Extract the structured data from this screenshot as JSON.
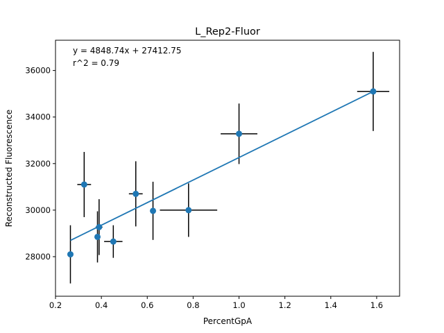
{
  "chart_data": {
    "type": "scatter",
    "title": "L_Rep2-Fluor",
    "xlabel": "PercentGpA",
    "ylabel": "Reconstructed Fluorescence",
    "xlim": [
      0.2,
      1.7
    ],
    "ylim": [
      26300,
      37300
    ],
    "x_ticks": [
      0.2,
      0.4,
      0.6,
      0.8,
      1.0,
      1.2,
      1.4,
      1.6
    ],
    "x_tick_labels": [
      "0.2",
      "0.4",
      "0.6",
      "0.8",
      "1.0",
      "1.2",
      "1.4",
      "1.6"
    ],
    "y_ticks": [
      28000,
      30000,
      32000,
      34000,
      36000
    ],
    "y_tick_labels": [
      "28000",
      "30000",
      "32000",
      "34000",
      "36000"
    ],
    "grid": false,
    "legend": false,
    "annotations": [
      "y = 4848.74x + 27412.75",
      "r^2 = 0.79"
    ],
    "fit": {
      "slope": 4848.74,
      "intercept": 27412.75,
      "r2": 0.79,
      "x_range": [
        0.265,
        1.585
      ],
      "color": "#1f77b4"
    },
    "marker_color": "#1f77b4",
    "errorbar_color": "#000000",
    "points": [
      {
        "x": 0.265,
        "y": 28100,
        "xerr": 0.01,
        "yerr": 1250
      },
      {
        "x": 0.325,
        "y": 31100,
        "xerr": 0.03,
        "yerr": 1400
      },
      {
        "x": 0.383,
        "y": 28850,
        "xerr": 0.01,
        "yerr": 1100
      },
      {
        "x": 0.39,
        "y": 29270,
        "xerr": 0.015,
        "yerr": 1200
      },
      {
        "x": 0.452,
        "y": 28650,
        "xerr": 0.04,
        "yerr": 700
      },
      {
        "x": 0.55,
        "y": 30700,
        "xerr": 0.03,
        "yerr": 1400
      },
      {
        "x": 0.625,
        "y": 29970,
        "xerr": 0.01,
        "yerr": 1250
      },
      {
        "x": 0.78,
        "y": 30000,
        "xerr": 0.125,
        "yerr": 1150
      },
      {
        "x": 1.0,
        "y": 33280,
        "xerr": 0.08,
        "yerr": 1300
      },
      {
        "x": 1.585,
        "y": 35100,
        "xerr": 0.07,
        "yerr": 1700
      }
    ]
  }
}
